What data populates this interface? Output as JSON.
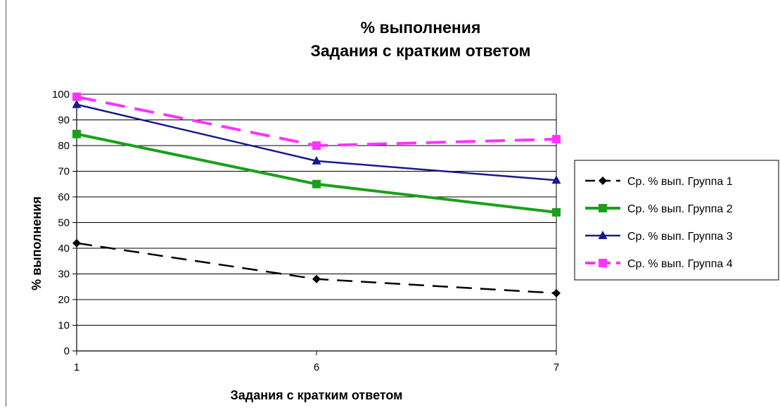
{
  "chart_data": {
    "type": "line",
    "title": "% выполнения",
    "subtitle": "Задания с кратким ответом",
    "xlabel": "Задания с кратким ответом",
    "ylabel": "% выполнения",
    "categories": [
      "1",
      "6",
      "7"
    ],
    "ylim": [
      0,
      100
    ],
    "yticks": [
      0,
      10,
      20,
      30,
      40,
      50,
      60,
      70,
      80,
      90,
      100
    ],
    "grid": true,
    "legend_position": "right",
    "series": [
      {
        "name": "Ср. % вып. Группа  1",
        "values": [
          42,
          28,
          22.5
        ],
        "color": "#000000",
        "marker": "diamond",
        "dashed": true
      },
      {
        "name": "Ср. % вып. Группа  2",
        "values": [
          84.5,
          65,
          54
        ],
        "color": "#1aa01a",
        "marker": "square",
        "dashed": false
      },
      {
        "name": "Ср. % вып. Группа  3",
        "values": [
          96,
          74,
          66.5
        ],
        "color": "#1a1a8c",
        "marker": "triangle",
        "dashed": false
      },
      {
        "name": "Ср. % вып. Группа  4",
        "values": [
          99,
          80,
          82.5
        ],
        "color": "#ff33ff",
        "marker": "square",
        "dashed": true
      }
    ]
  }
}
